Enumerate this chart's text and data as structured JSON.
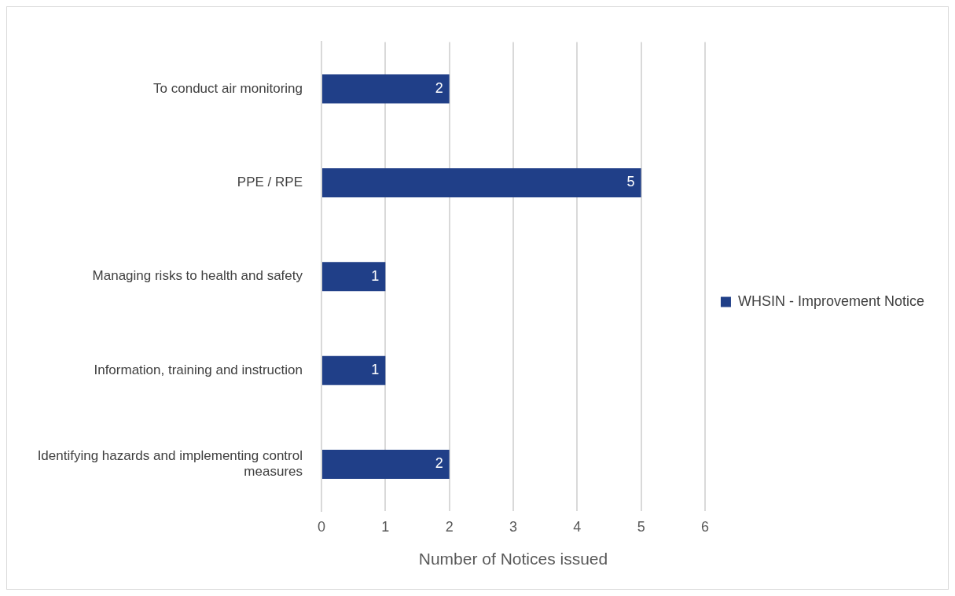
{
  "chart_data": {
    "type": "bar",
    "orientation": "horizontal",
    "xlabel": "Number of Notices issued",
    "categories": [
      "To conduct air monitoring",
      "PPE / RPE",
      "Managing risks to health and safety",
      "Information, training and instruction",
      "Identifying hazards and implementing control measures"
    ],
    "series": [
      {
        "name": "WHSIN - Improvement Notice",
        "color": "#203f88",
        "values": [
          2,
          5,
          1,
          1,
          2
        ]
      }
    ],
    "xlim": [
      0,
      6
    ],
    "xticks": [
      0,
      1,
      2,
      3,
      4,
      5,
      6
    ],
    "grid": "x",
    "legend": "right",
    "data_labels": true
  }
}
